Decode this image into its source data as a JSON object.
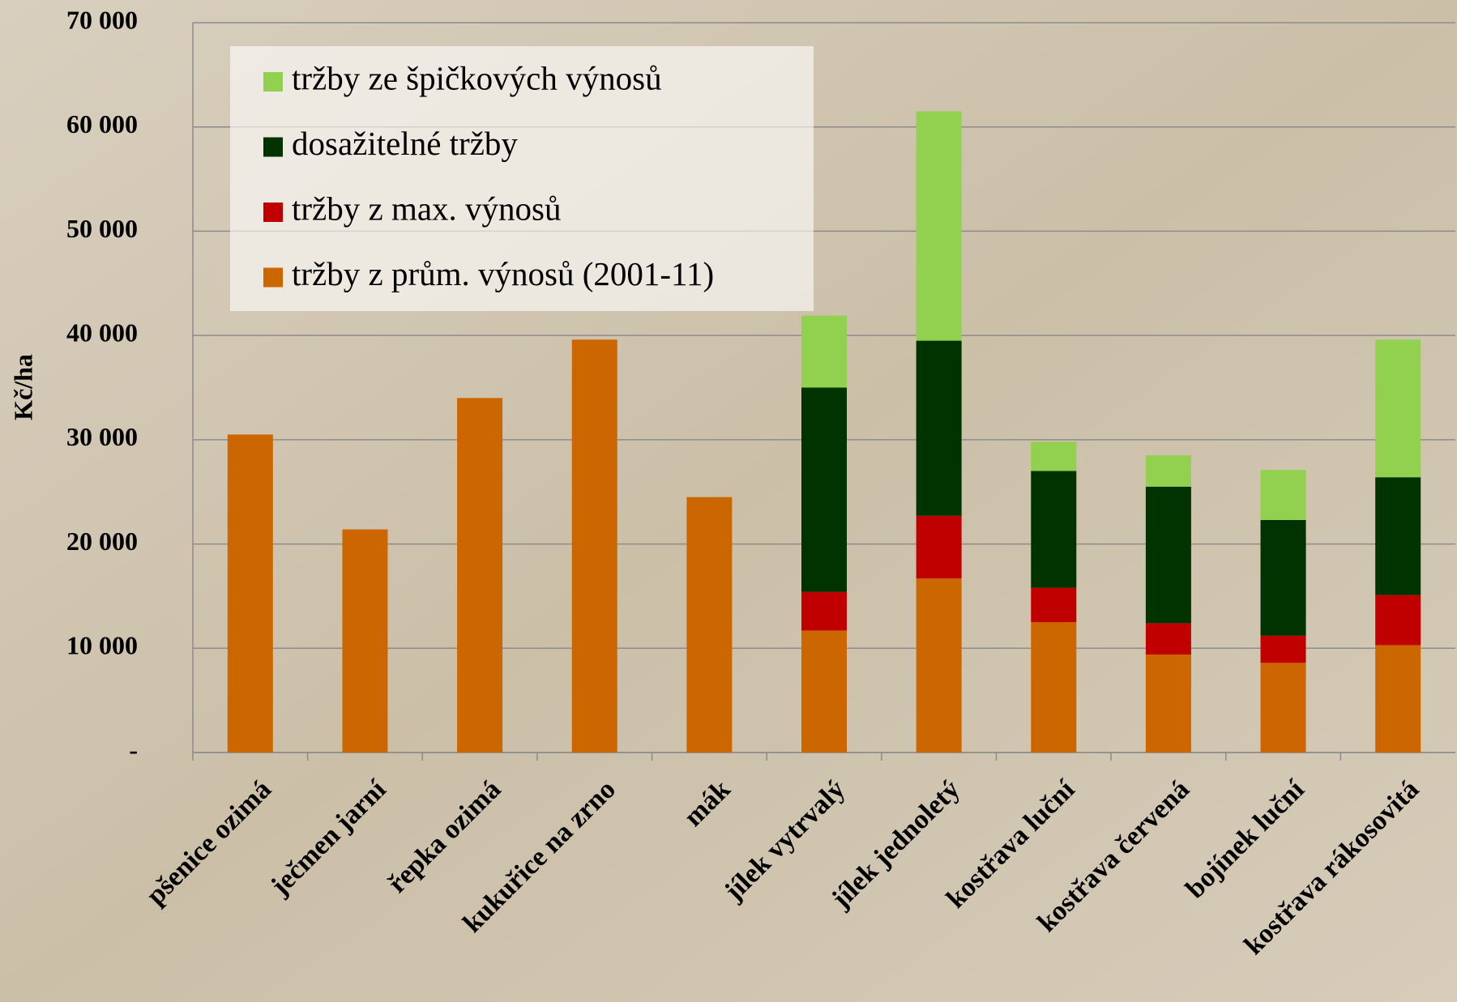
{
  "chart_data": {
    "type": "stacked_bar",
    "y_label": "Kč/ha",
    "categories": [
      "pšenice ozimá",
      "ječmen jarní",
      "řepka ozimá",
      "kukuřice na zrno",
      "mák",
      "jílek vytrvalý",
      "jílek jednoletý",
      "kostřava luční",
      "kostřava červená",
      "bojínek luční",
      "kostřava rákosovitá"
    ],
    "series": [
      {
        "name": "tržby z prům. výnosů (2001-11)",
        "color": "#cc6600",
        "values": [
          30500,
          21400,
          34000,
          39600,
          24500,
          11700,
          16700,
          12500,
          9400,
          8600,
          10300
        ]
      },
      {
        "name": "tržby z max. výnosů",
        "color": "#c00000",
        "values": [
          null,
          null,
          null,
          null,
          null,
          3700,
          6000,
          3300,
          3000,
          2600,
          4800
        ]
      },
      {
        "name": "dosažitelné tržby",
        "color": "#003300",
        "values": [
          null,
          null,
          null,
          null,
          null,
          19600,
          16800,
          11200,
          13100,
          11100,
          11300
        ]
      },
      {
        "name": "tržby ze špičkových výnosů",
        "color": "#92d050",
        "values": [
          null,
          null,
          null,
          null,
          null,
          6900,
          22000,
          2800,
          3000,
          4800,
          13200
        ]
      }
    ],
    "ylim": [
      0,
      70000
    ],
    "yticks": [
      {
        "value": 0,
        "label": "-"
      },
      {
        "value": 10000,
        "label": "10 000"
      },
      {
        "value": 20000,
        "label": "20 000"
      },
      {
        "value": 30000,
        "label": "30 000"
      },
      {
        "value": 40000,
        "label": "40 000"
      },
      {
        "value": 50000,
        "label": "50 000"
      },
      {
        "value": 60000,
        "label": "60 000"
      },
      {
        "value": 70000,
        "label": "70 000"
      }
    ],
    "grid": true
  }
}
